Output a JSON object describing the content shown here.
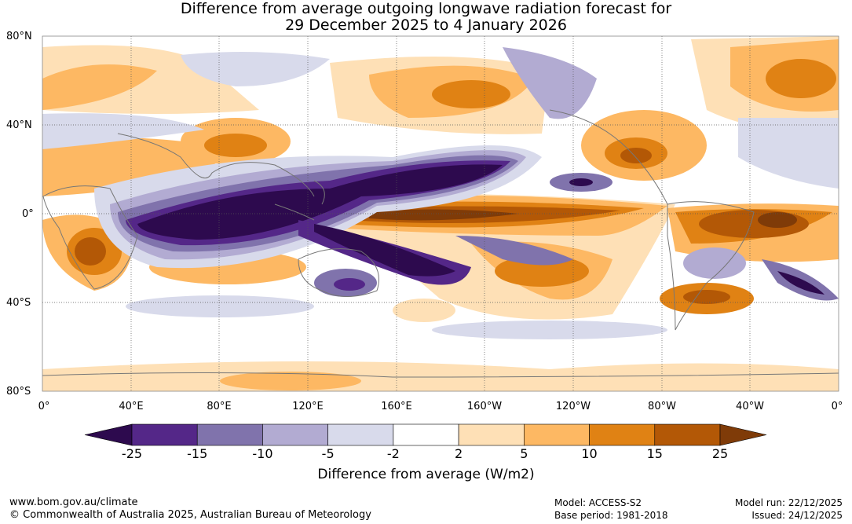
{
  "title": {
    "line1": "Difference from average outgoing longwave radiation forecast for",
    "line2": "29 December 2025 to 4 January 2026"
  },
  "axes": {
    "lat_labels": [
      "80°N",
      "40°N",
      "0°",
      "40°S",
      "80°S"
    ],
    "lon_labels": [
      "0°",
      "40°E",
      "80°E",
      "120°E",
      "160°E",
      "160°W",
      "120°W",
      "80°W",
      "40°W",
      "0°"
    ]
  },
  "legend": {
    "title": "Difference from average (W/m2)",
    "ticks": [
      "-25",
      "-15",
      "-10",
      "-5",
      "-2",
      "2",
      "5",
      "10",
      "15",
      "25"
    ],
    "colors": [
      "#2d0a4e",
      "#542788",
      "#8073ac",
      "#b2abd2",
      "#d8daeb",
      "#ffffff",
      "#fee0b6",
      "#fdb863",
      "#e08214",
      "#b35806",
      "#7f3b08"
    ]
  },
  "footer": {
    "website": "www.bom.gov.au/climate",
    "copyright": "© Commonwealth of Australia 2025, Australian Bureau of Meteorology",
    "model": "Model: ACCESS-S2",
    "base_period": "Base period: 1981-2018",
    "model_run": "Model run: 22/12/2025",
    "issued": "Issued: 24/12/2025"
  }
}
